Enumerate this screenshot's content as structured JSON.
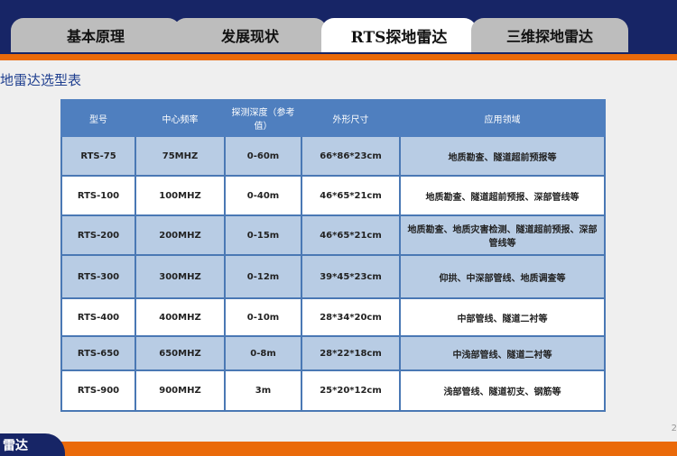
{
  "tabs": [
    {
      "label": "基本原理"
    },
    {
      "label": "发展现状"
    },
    {
      "label": "RTS探地雷达",
      "active": true
    },
    {
      "label": "三维探地雷达"
    }
  ],
  "section_title": "地雷达选型表",
  "table": {
    "headers": [
      "型号",
      "中心频率",
      "探测深度（参考值）",
      "外形尺寸",
      "应用领域"
    ],
    "rows": [
      [
        "RTS-75",
        "75MHZ",
        "0-60m",
        "66*86*23cm",
        "地质勘查、隧道超前预报等"
      ],
      [
        "RTS-100",
        "100MHZ",
        "0-40m",
        "46*65*21cm",
        "地质勘查、隧道超前预报、深部管线等"
      ],
      [
        "RTS-200",
        "200MHZ",
        "0-15m",
        "46*65*21cm",
        "地质勘查、地质灾害检测、隧道超前预报、深部管线等"
      ],
      [
        "RTS-300",
        "300MHZ",
        "0-12m",
        "39*45*23cm",
        "仰拱、中深部管线、地质调查等"
      ],
      [
        "RTS-400",
        "400MHZ",
        "0-10m",
        "28*34*20cm",
        "中部管线、隧道二衬等"
      ],
      [
        "RTS-650",
        "650MHZ",
        "0-8m",
        "28*22*18cm",
        "中浅部管线、隧道二衬等"
      ],
      [
        "RTS-900",
        "900MHZ",
        "3m",
        "25*20*12cm",
        "浅部管线、隧道初支、钢筋等"
      ]
    ]
  },
  "footer": {
    "label": "雷达",
    "page": "2"
  },
  "colors": {
    "navy": "#172566",
    "orange": "#ea6a0a",
    "header_blue": "#4f7fbf",
    "row_blue": "#b8cce4"
  }
}
